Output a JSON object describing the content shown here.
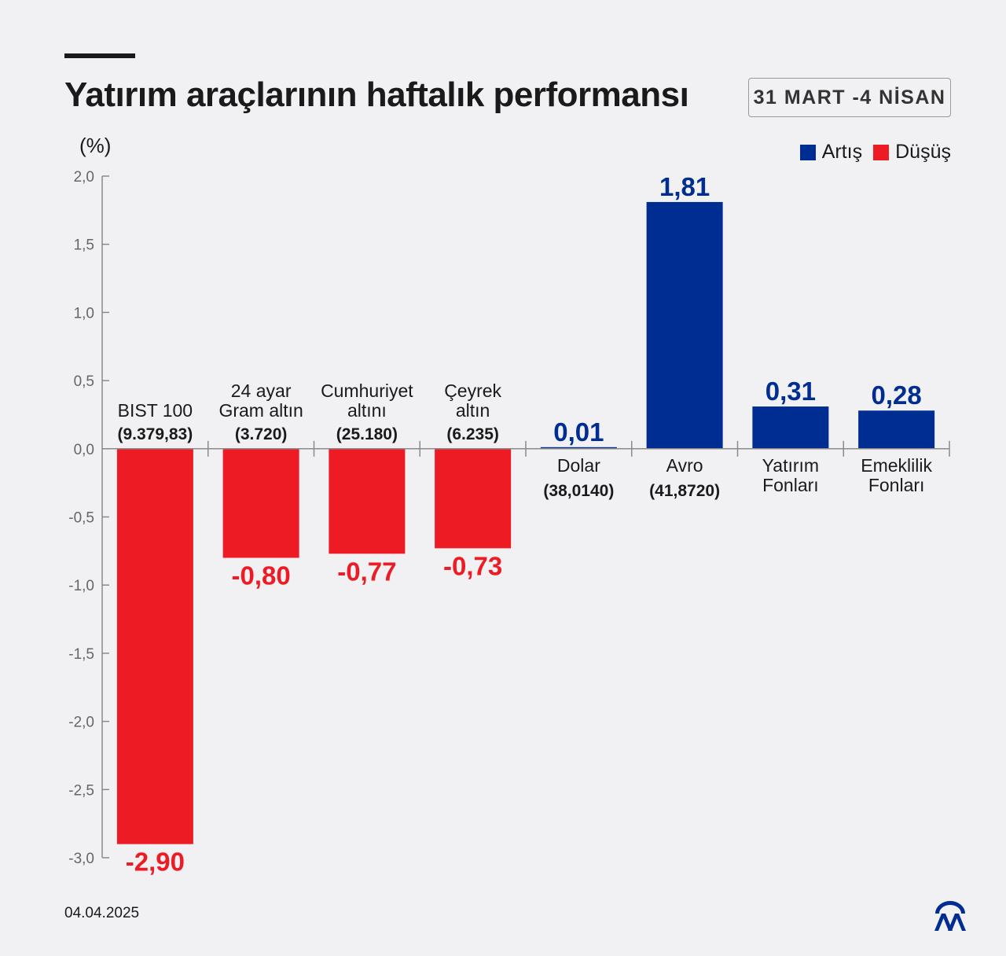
{
  "header": {
    "title": "Yatırım araçlarının haftalık performansı",
    "date_range": "31 MART -4 NİSAN"
  },
  "unit_label": "(%)",
  "legend": {
    "items": [
      {
        "label": "Artış",
        "color": "#002d91"
      },
      {
        "label": "Düşüş",
        "color": "#ed1c24"
      }
    ]
  },
  "footer": {
    "date": "04.04.2025",
    "logo": "aa-logo-icon"
  },
  "chart_data": {
    "type": "bar",
    "categories": [
      {
        "lines": [
          "BIST 100"
        ],
        "sub": "(9.379,83)"
      },
      {
        "lines": [
          "24 ayar",
          "Gram altın"
        ],
        "sub": "(3.720)"
      },
      {
        "lines": [
          "Cumhuriyet",
          "altını"
        ],
        "sub": "(25.180)"
      },
      {
        "lines": [
          "Çeyrek",
          "altın"
        ],
        "sub": "(6.235)"
      },
      {
        "lines": [
          "Dolar"
        ],
        "sub": "(38,0140)"
      },
      {
        "lines": [
          "Avro"
        ],
        "sub": "(41,8720)"
      },
      {
        "lines": [
          "Yatırım",
          "Fonları"
        ],
        "sub": ""
      },
      {
        "lines": [
          "Emeklilik",
          "Fonları"
        ],
        "sub": ""
      }
    ],
    "values": [
      -2.9,
      -0.8,
      -0.77,
      -0.73,
      0.01,
      1.81,
      0.31,
      0.28
    ],
    "value_labels": [
      "-2,90",
      "-0,80",
      "-0,77",
      "-0,73",
      "0,01",
      "1,81",
      "0,31",
      "0,28"
    ],
    "ylim": [
      -3.0,
      2.0
    ],
    "yticks": [
      2.0,
      1.5,
      1.0,
      0.5,
      0.0,
      -0.5,
      -1.0,
      -1.5,
      -2.0,
      -2.5,
      -3.0
    ],
    "ytick_labels": [
      "2,0",
      "1,5",
      "1,0",
      "0,5",
      "0,0",
      "-0,5",
      "-1,0",
      "-1,5",
      "-2,0",
      "-2,5",
      "-3,0"
    ],
    "colors": {
      "positive": "#002d91",
      "negative": "#ed1c24",
      "axis": "#8a8a8a"
    },
    "grid": false
  }
}
